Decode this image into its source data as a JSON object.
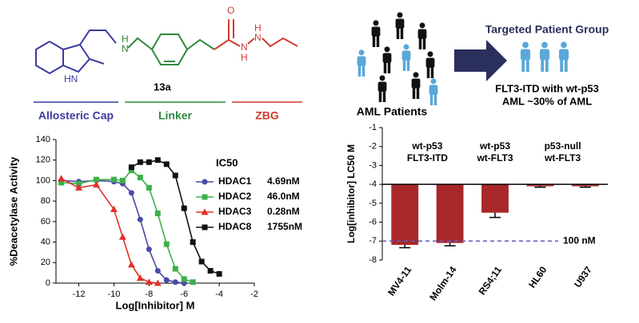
{
  "structure": {
    "compound": "13a",
    "atoms": [
      "HN",
      "H",
      "N",
      "O",
      "N",
      "H",
      "H",
      "N"
    ],
    "segments": [
      {
        "label": "Allosteric Cap",
        "color": "#3b3ba0"
      },
      {
        "label": "Linker",
        "color": "#2f8a3c"
      },
      {
        "label": "ZBG",
        "color": "#d23a2f"
      }
    ]
  },
  "patients": {
    "pool_label": "AML Patients",
    "target_title": "Targeted Patient Group",
    "target_lines": [
      "FLT3-ITD with wt-p53",
      "AML ~30% of AML"
    ]
  },
  "chart_data": [
    {
      "type": "line",
      "x_label": "Log[Inhibitor] M",
      "y_label": "%Deacetylase Activity",
      "legend_title": "IC50",
      "xlim": [
        -13.3,
        -2
      ],
      "xticks": [
        -12,
        -10,
        -8,
        -6,
        -4,
        -2
      ],
      "ylim": [
        0,
        140
      ],
      "yticks": [
        0,
        20,
        40,
        60,
        80,
        100,
        120,
        140
      ],
      "x": [
        -13,
        -12,
        -11,
        -10,
        -9.5,
        -9,
        -8.5,
        -8,
        -7.5,
        -7,
        -6.5,
        -6,
        -5.5,
        -5,
        -4.5,
        -4
      ],
      "series": [
        {
          "name": "HDAC1",
          "ic50": "4.69nM",
          "color": "#4a4aa8",
          "marker": "circle",
          "values": [
            100,
            99,
            100,
            99,
            97,
            88,
            62,
            33,
            12,
            3,
            1,
            0,
            null,
            null,
            null,
            null
          ]
        },
        {
          "name": "HDAC2",
          "ic50": "46.0nM",
          "color": "#3cb04a",
          "marker": "square",
          "values": [
            98,
            97,
            101,
            101,
            100,
            110,
            103,
            93,
            68,
            38,
            14,
            4,
            1,
            null,
            null,
            null
          ]
        },
        {
          "name": "HDAC3",
          "ic50": "0.28nM",
          "color": "#e0302a",
          "marker": "triangle",
          "values": [
            102,
            93,
            96,
            72,
            45,
            18,
            5,
            1,
            0,
            null,
            null,
            null,
            null,
            null,
            null,
            null
          ]
        },
        {
          "name": "HDAC8",
          "ic50": "1755nM",
          "color": "#111111",
          "marker": "square",
          "values": [
            null,
            null,
            null,
            null,
            null,
            113,
            118,
            118,
            120,
            116,
            105,
            73,
            40,
            21,
            12,
            9
          ]
        }
      ]
    },
    {
      "type": "bar",
      "y_label": "Log[inhibitor] LC50 M",
      "categories": [
        "MV4-11",
        "Molm-14",
        "RS4;11",
        "HL60",
        "U937"
      ],
      "values": [
        -7.2,
        -7.1,
        -5.5,
        -4.1,
        -4.1
      ],
      "errors": [
        0.15,
        0.15,
        0.25,
        0.05,
        0.05
      ],
      "color": "#a8282a",
      "bar_base": -4,
      "ylim": [
        -8,
        -1
      ],
      "yticks": [
        -8,
        -7,
        -6,
        -5,
        -4,
        -3,
        -2,
        -1
      ],
      "groups": [
        [
          "wt-p53",
          "FLT3-ITD"
        ],
        [
          "wt-p53",
          "wt-FLT3"
        ],
        [
          "p53-null",
          "wt-FLT3"
        ]
      ],
      "reference_line": {
        "value": -7,
        "label": "100 nM",
        "color": "#5a5ac0"
      }
    }
  ]
}
